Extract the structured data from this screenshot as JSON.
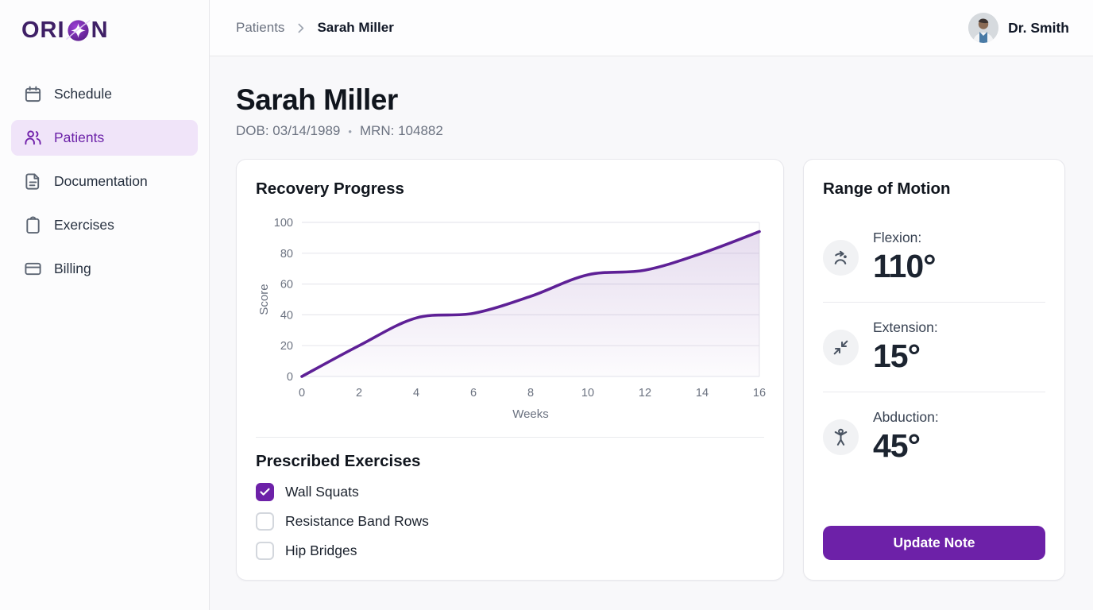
{
  "brand": {
    "name": "ORION",
    "pre": "ORI",
    "post": "N"
  },
  "sidebar": {
    "items": [
      {
        "label": "Schedule",
        "icon": "calendar-icon",
        "active": false
      },
      {
        "label": "Patients",
        "icon": "users-icon",
        "active": true
      },
      {
        "label": "Documentation",
        "icon": "file-text-icon",
        "active": false
      },
      {
        "label": "Exercises",
        "icon": "clipboard-icon",
        "active": false
      },
      {
        "label": "Billing",
        "icon": "credit-card-icon",
        "active": false
      }
    ]
  },
  "header": {
    "breadcrumb": {
      "parent": "Patients",
      "current": "Sarah Miller"
    },
    "user": "Dr. Smith"
  },
  "patient": {
    "name": "Sarah Miller",
    "dob": "DOB: 03/14/1989",
    "separator": "•",
    "mrn": "MRN: 104882"
  },
  "recovery": {
    "title": "Recovery Progress"
  },
  "chart_data": {
    "type": "area",
    "title": "Recovery Progress",
    "x": [
      0,
      2,
      4,
      6,
      8,
      10,
      12,
      14,
      16
    ],
    "series": [
      {
        "name": "Score",
        "values": [
          0,
          20,
          38,
          41,
          52,
          66,
          69,
          80,
          94
        ]
      }
    ],
    "xlabel": "Weeks",
    "ylabel": "Score",
    "xlim": [
      0,
      16
    ],
    "ylim": [
      0,
      100
    ],
    "xticks": [
      0,
      2,
      4,
      6,
      8,
      10,
      12,
      14,
      16
    ],
    "yticks": [
      0,
      20,
      40,
      60,
      80,
      100
    ],
    "grid": "horizontal",
    "legend": "none",
    "smooth": true,
    "style": {
      "line": "#5e2096",
      "area_top": "rgba(94,32,150,0.16)",
      "area_bottom": "rgba(94,32,150,0.015)",
      "grid_color": "#e8e8ee",
      "tick_color": "#6b7280"
    }
  },
  "exercises": {
    "title": "Prescribed Exercises",
    "items": [
      {
        "label": "Wall Squats",
        "checked": true
      },
      {
        "label": "Resistance Band Rows",
        "checked": false
      },
      {
        "label": "Hip Bridges",
        "checked": false
      }
    ]
  },
  "rom": {
    "title": "Range of Motion",
    "metrics": [
      {
        "label": "Flexion:",
        "value": "110°",
        "icon": "flexion-icon"
      },
      {
        "label": "Extension:",
        "value": "15°",
        "icon": "extension-icon"
      },
      {
        "label": "Abduction:",
        "value": "45°",
        "icon": "abduction-icon"
      }
    ],
    "button_label": "Update Note"
  },
  "colors": {
    "brand_purple": "#6d21a8",
    "brand_dark": "#3f2066",
    "active_bg": "#f0e4f9",
    "chart_line": "#5e2096",
    "text_muted": "#6b7280"
  }
}
